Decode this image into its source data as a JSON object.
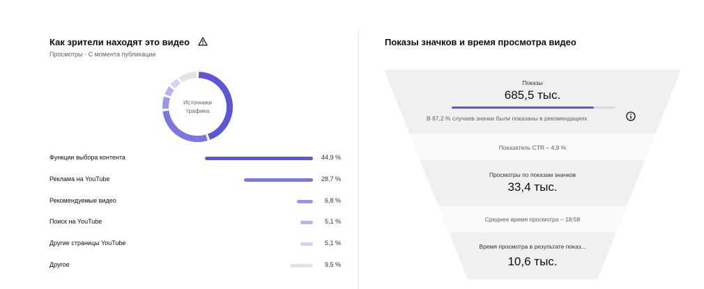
{
  "traffic": {
    "title": "Как зрители находят это видео",
    "subtitle": "Просмотры · С момента публикации",
    "donut_center_line1": "Источники",
    "donut_center_line2": "трафика",
    "sources": [
      {
        "label": "Функции выбора контента",
        "value": 44.9,
        "pct_text": "44,9 %",
        "color": "#5c56d6"
      },
      {
        "label": "Реклама на YouTube",
        "value": 28.7,
        "pct_text": "28,7 %",
        "color": "#7a75df"
      },
      {
        "label": "Рекомендуемые видео",
        "value": 6.8,
        "pct_text": "6,8 %",
        "color": "#9995e8"
      },
      {
        "label": "Поиск на YouTube",
        "value": 5.1,
        "pct_text": "5,1 %",
        "color": "#b6b3ef"
      },
      {
        "label": "Другие страницы YouTube",
        "value": 5.1,
        "pct_text": "5,1 %",
        "color": "#d3d1f6"
      },
      {
        "label": "Другое",
        "value": 9.5,
        "pct_text": "9,5 %",
        "color": "#e3e3e3"
      }
    ]
  },
  "funnel": {
    "title": "Показы значков и время просмотра видео",
    "impressions_label": "Показы",
    "impressions_value": "685,5 тыс.",
    "impressions_recommended_fraction": 0.872,
    "impressions_note": "В 87,2 % случаев значки были показаны в рекомендациях",
    "ctr_text": "Показатель CTR – 4,9 %",
    "views_label": "Просмотры по показам значков",
    "views_value": "33,4 тыс.",
    "avg_watch_text": "Среднее время просмотра – 18:58",
    "watch_label": "Время просмотра в результате показ...",
    "watch_value": "10,6 тыс."
  },
  "colors": {
    "accent": "#5c56d6",
    "funnel_dark": "#f0f0f0",
    "funnel_light": "#f9f9f9"
  }
}
